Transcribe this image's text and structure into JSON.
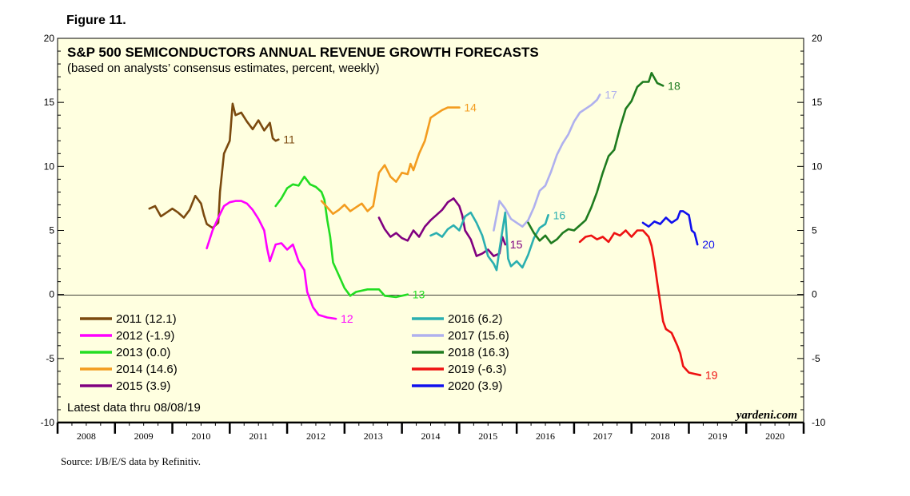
{
  "figure_label": "Figure 11.",
  "title": "S&P 500 SEMICONDUCTORS ANNUAL REVENUE GROWTH FORECASTS",
  "subtitle": "(based on analysts’ consensus estimates, percent, weekly)",
  "latest_data": "Latest data thru 08/08/19",
  "brand": "yardeni.com",
  "source": "Source: I/B/E/S data by Refinitiv.",
  "chart_data": {
    "type": "line",
    "title": "S&P 500 SEMICONDUCTORS ANNUAL REVENUE GROWTH FORECASTS",
    "subtitle": "(based on analysts’ consensus estimates, percent, weekly)",
    "ylim": [
      -10,
      20
    ],
    "yticks": [
      "20",
      "15",
      "10",
      "5",
      "0",
      "-5",
      "-10"
    ],
    "xlim": [
      2008,
      2021
    ],
    "xticks": [
      "2008",
      "2009",
      "2010",
      "2011",
      "2012",
      "2013",
      "2014",
      "2015",
      "2016",
      "2017",
      "2018",
      "2019",
      "2020"
    ],
    "grid": false,
    "zero_line": true,
    "legend_position": "bottom-left and bottom-center",
    "series": [
      {
        "name": "2011 (12.1)",
        "end_label": "11",
        "color": "#7B4A0F",
        "points": [
          [
            2009.6,
            6.7
          ],
          [
            2009.7,
            6.9
          ],
          [
            2009.8,
            6.1
          ],
          [
            2009.9,
            6.4
          ],
          [
            2010.0,
            6.7
          ],
          [
            2010.1,
            6.4
          ],
          [
            2010.2,
            6.0
          ],
          [
            2010.3,
            6.6
          ],
          [
            2010.4,
            7.7
          ],
          [
            2010.5,
            7.1
          ],
          [
            2010.55,
            6.2
          ],
          [
            2010.6,
            5.5
          ],
          [
            2010.7,
            5.2
          ],
          [
            2010.8,
            5.6
          ],
          [
            2010.83,
            8.0
          ],
          [
            2010.9,
            11.0
          ],
          [
            2011.0,
            12.0
          ],
          [
            2011.05,
            14.9
          ],
          [
            2011.1,
            14.0
          ],
          [
            2011.2,
            14.2
          ],
          [
            2011.3,
            13.5
          ],
          [
            2011.4,
            12.9
          ],
          [
            2011.5,
            13.6
          ],
          [
            2011.6,
            12.8
          ],
          [
            2011.7,
            13.4
          ],
          [
            2011.75,
            12.2
          ],
          [
            2011.8,
            12.0
          ],
          [
            2011.85,
            12.1
          ]
        ]
      },
      {
        "name": "2012 (-1.9)",
        "end_label": "12",
        "color": "#FF00FF",
        "points": [
          [
            2010.6,
            3.6
          ],
          [
            2010.7,
            5.0
          ],
          [
            2010.8,
            6.0
          ],
          [
            2010.9,
            6.9
          ],
          [
            2011.0,
            7.2
          ],
          [
            2011.1,
            7.3
          ],
          [
            2011.2,
            7.3
          ],
          [
            2011.3,
            7.1
          ],
          [
            2011.4,
            6.6
          ],
          [
            2011.5,
            5.9
          ],
          [
            2011.6,
            5.0
          ],
          [
            2011.65,
            3.6
          ],
          [
            2011.7,
            2.6
          ],
          [
            2011.8,
            3.9
          ],
          [
            2011.9,
            4.0
          ],
          [
            2012.0,
            3.5
          ],
          [
            2012.1,
            3.9
          ],
          [
            2012.2,
            2.6
          ],
          [
            2012.3,
            1.9
          ],
          [
            2012.35,
            0.2
          ],
          [
            2012.45,
            -1.0
          ],
          [
            2012.55,
            -1.6
          ],
          [
            2012.7,
            -1.8
          ],
          [
            2012.85,
            -1.9
          ]
        ]
      },
      {
        "name": "2013 (0.0)",
        "end_label": "13",
        "color": "#22DD22",
        "points": [
          [
            2011.8,
            6.9
          ],
          [
            2011.9,
            7.5
          ],
          [
            2012.0,
            8.3
          ],
          [
            2012.1,
            8.6
          ],
          [
            2012.2,
            8.5
          ],
          [
            2012.3,
            9.2
          ],
          [
            2012.4,
            8.6
          ],
          [
            2012.5,
            8.4
          ],
          [
            2012.6,
            8.0
          ],
          [
            2012.65,
            7.4
          ],
          [
            2012.7,
            5.8
          ],
          [
            2012.75,
            4.5
          ],
          [
            2012.8,
            2.5
          ],
          [
            2012.9,
            1.5
          ],
          [
            2013.0,
            0.5
          ],
          [
            2013.1,
            -0.1
          ],
          [
            2013.2,
            0.2
          ],
          [
            2013.4,
            0.4
          ],
          [
            2013.6,
            0.4
          ],
          [
            2013.7,
            -0.1
          ],
          [
            2013.9,
            -0.2
          ],
          [
            2014.1,
            0.0
          ]
        ]
      },
      {
        "name": "2014 (14.6)",
        "end_label": "14",
        "color": "#F39C1F",
        "points": [
          [
            2012.6,
            7.3
          ],
          [
            2012.8,
            6.3
          ],
          [
            2012.9,
            6.6
          ],
          [
            2013.0,
            7.0
          ],
          [
            2013.1,
            6.5
          ],
          [
            2013.2,
            6.8
          ],
          [
            2013.3,
            7.1
          ],
          [
            2013.4,
            6.5
          ],
          [
            2013.5,
            6.9
          ],
          [
            2013.6,
            9.5
          ],
          [
            2013.7,
            10.1
          ],
          [
            2013.8,
            9.2
          ],
          [
            2013.9,
            8.8
          ],
          [
            2014.0,
            9.5
          ],
          [
            2014.1,
            9.4
          ],
          [
            2014.15,
            10.2
          ],
          [
            2014.2,
            9.7
          ],
          [
            2014.3,
            11.0
          ],
          [
            2014.4,
            12.0
          ],
          [
            2014.5,
            13.8
          ],
          [
            2014.6,
            14.1
          ],
          [
            2014.7,
            14.4
          ],
          [
            2014.8,
            14.6
          ],
          [
            2015.0,
            14.6
          ]
        ]
      },
      {
        "name": "2015 (3.9)",
        "end_label": "15",
        "color": "#800080",
        "points": [
          [
            2013.6,
            6.0
          ],
          [
            2013.7,
            5.1
          ],
          [
            2013.8,
            4.5
          ],
          [
            2013.9,
            4.8
          ],
          [
            2014.0,
            4.4
          ],
          [
            2014.1,
            4.2
          ],
          [
            2014.2,
            5.0
          ],
          [
            2014.3,
            4.5
          ],
          [
            2014.4,
            5.3
          ],
          [
            2014.5,
            5.8
          ],
          [
            2014.6,
            6.2
          ],
          [
            2014.7,
            6.6
          ],
          [
            2014.8,
            7.2
          ],
          [
            2014.9,
            7.5
          ],
          [
            2015.0,
            6.9
          ],
          [
            2015.05,
            6.2
          ],
          [
            2015.1,
            5.0
          ],
          [
            2015.2,
            4.3
          ],
          [
            2015.3,
            3.0
          ],
          [
            2015.4,
            3.2
          ],
          [
            2015.5,
            3.5
          ],
          [
            2015.6,
            3.0
          ],
          [
            2015.7,
            3.2
          ],
          [
            2015.75,
            4.5
          ],
          [
            2015.8,
            3.9
          ]
        ]
      },
      {
        "name": "2016 (6.2)",
        "end_label": "16",
        "color": "#2AAFB0",
        "points": [
          [
            2014.5,
            4.6
          ],
          [
            2014.6,
            4.8
          ],
          [
            2014.7,
            4.5
          ],
          [
            2014.8,
            5.1
          ],
          [
            2014.9,
            5.4
          ],
          [
            2015.0,
            5.0
          ],
          [
            2015.1,
            6.1
          ],
          [
            2015.2,
            6.4
          ],
          [
            2015.3,
            5.6
          ],
          [
            2015.4,
            4.6
          ],
          [
            2015.5,
            3.0
          ],
          [
            2015.6,
            2.4
          ],
          [
            2015.65,
            1.9
          ],
          [
            2015.7,
            3.5
          ],
          [
            2015.8,
            6.4
          ],
          [
            2015.85,
            2.8
          ],
          [
            2015.9,
            2.2
          ],
          [
            2016.0,
            2.6
          ],
          [
            2016.1,
            2.1
          ],
          [
            2016.2,
            3.1
          ],
          [
            2016.3,
            4.4
          ],
          [
            2016.4,
            5.2
          ],
          [
            2016.5,
            5.5
          ],
          [
            2016.55,
            6.2
          ]
        ]
      },
      {
        "name": "2017 (15.6)",
        "end_label": "17",
        "color": "#AFB0EE",
        "points": [
          [
            2015.6,
            5.0
          ],
          [
            2015.7,
            7.3
          ],
          [
            2015.8,
            6.7
          ],
          [
            2015.9,
            5.9
          ],
          [
            2016.0,
            5.6
          ],
          [
            2016.1,
            5.3
          ],
          [
            2016.2,
            5.8
          ],
          [
            2016.3,
            6.8
          ],
          [
            2016.4,
            8.1
          ],
          [
            2016.5,
            8.5
          ],
          [
            2016.6,
            9.6
          ],
          [
            2016.7,
            10.9
          ],
          [
            2016.8,
            11.8
          ],
          [
            2016.9,
            12.5
          ],
          [
            2017.0,
            13.5
          ],
          [
            2017.1,
            14.2
          ],
          [
            2017.2,
            14.5
          ],
          [
            2017.3,
            14.8
          ],
          [
            2017.4,
            15.2
          ],
          [
            2017.45,
            15.6
          ]
        ]
      },
      {
        "name": "2018 (16.3)",
        "end_label": "18",
        "color": "#1E7B1E",
        "points": [
          [
            2016.2,
            5.6
          ],
          [
            2016.3,
            4.8
          ],
          [
            2016.4,
            4.2
          ],
          [
            2016.5,
            4.6
          ],
          [
            2016.6,
            4.0
          ],
          [
            2016.7,
            4.3
          ],
          [
            2016.8,
            4.8
          ],
          [
            2016.9,
            5.1
          ],
          [
            2017.0,
            5.0
          ],
          [
            2017.1,
            5.4
          ],
          [
            2017.2,
            5.8
          ],
          [
            2017.3,
            6.8
          ],
          [
            2017.4,
            8.0
          ],
          [
            2017.5,
            9.5
          ],
          [
            2017.6,
            10.8
          ],
          [
            2017.7,
            11.3
          ],
          [
            2017.8,
            13.0
          ],
          [
            2017.9,
            14.5
          ],
          [
            2018.0,
            15.1
          ],
          [
            2018.1,
            16.2
          ],
          [
            2018.2,
            16.6
          ],
          [
            2018.3,
            16.6
          ],
          [
            2018.35,
            17.3
          ],
          [
            2018.4,
            16.9
          ],
          [
            2018.45,
            16.5
          ],
          [
            2018.55,
            16.3
          ]
        ]
      },
      {
        "name": "2019 (-6.3)",
        "end_label": "19",
        "color": "#EE1111",
        "points": [
          [
            2017.1,
            4.1
          ],
          [
            2017.2,
            4.5
          ],
          [
            2017.3,
            4.6
          ],
          [
            2017.4,
            4.3
          ],
          [
            2017.5,
            4.5
          ],
          [
            2017.6,
            4.1
          ],
          [
            2017.7,
            4.8
          ],
          [
            2017.8,
            4.6
          ],
          [
            2017.9,
            5.0
          ],
          [
            2018.0,
            4.5
          ],
          [
            2018.1,
            5.0
          ],
          [
            2018.2,
            5.0
          ],
          [
            2018.3,
            4.5
          ],
          [
            2018.35,
            3.8
          ],
          [
            2018.4,
            2.5
          ],
          [
            2018.45,
            0.9
          ],
          [
            2018.5,
            -0.6
          ],
          [
            2018.55,
            -2.1
          ],
          [
            2018.6,
            -2.7
          ],
          [
            2018.7,
            -3.0
          ],
          [
            2018.8,
            -4.0
          ],
          [
            2018.85,
            -4.6
          ],
          [
            2018.9,
            -5.6
          ],
          [
            2019.0,
            -6.1
          ],
          [
            2019.1,
            -6.2
          ],
          [
            2019.2,
            -6.3
          ]
        ]
      },
      {
        "name": "2020 (3.9)",
        "end_label": "20",
        "color": "#1010EE",
        "points": [
          [
            2018.2,
            5.6
          ],
          [
            2018.3,
            5.3
          ],
          [
            2018.4,
            5.7
          ],
          [
            2018.5,
            5.5
          ],
          [
            2018.6,
            6.0
          ],
          [
            2018.7,
            5.6
          ],
          [
            2018.8,
            5.9
          ],
          [
            2018.85,
            6.5
          ],
          [
            2018.9,
            6.5
          ],
          [
            2019.0,
            6.2
          ],
          [
            2019.05,
            5.0
          ],
          [
            2019.1,
            4.8
          ],
          [
            2019.15,
            3.9
          ]
        ]
      }
    ]
  }
}
